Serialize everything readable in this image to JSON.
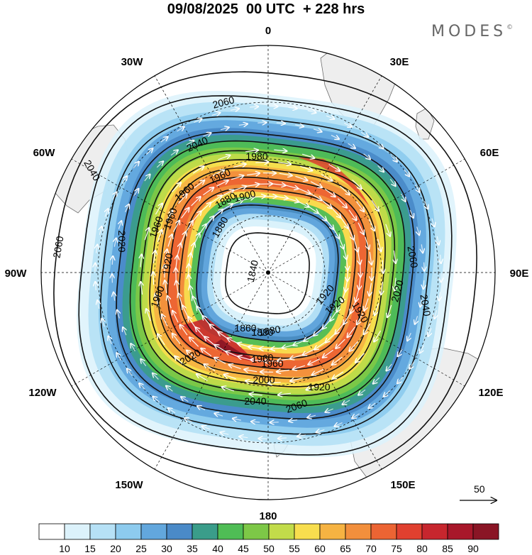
{
  "header": {
    "title": "09/08/2025  00 UTC  + 228 hrs",
    "brand": "MODES",
    "brand_mark": "©"
  },
  "longitude_labels": [
    "0",
    "30E",
    "60E",
    "90E",
    "120E",
    "150E",
    "180",
    "150W",
    "120W",
    "90W",
    "60W",
    "30W"
  ],
  "reference_vector": {
    "label": "50"
  },
  "contour_labels": [
    "2060",
    "2040",
    "2020",
    "2000",
    "1980",
    "1960",
    "1940",
    "1920",
    "1900",
    "1880",
    "1860",
    "1840"
  ],
  "colorbar": {
    "labels": [
      "10",
      "15",
      "20",
      "25",
      "30",
      "35",
      "40",
      "45",
      "50",
      "55",
      "60",
      "65",
      "70",
      "75",
      "80",
      "85",
      "90"
    ],
    "colors": [
      "#ffffff",
      "#dcf2fb",
      "#b6e1f6",
      "#8dcbee",
      "#62a7dd",
      "#4a8ac8",
      "#3a9d8a",
      "#4fbd55",
      "#7dc847",
      "#c2dc4a",
      "#f8de4e",
      "#f6b342",
      "#f28f3c",
      "#ec6433",
      "#e0402f",
      "#c7262e",
      "#a8172a",
      "#8a1525"
    ]
  },
  "colors": {
    "land": "#eeeeee",
    "coast": "#6d6d6d",
    "contour": "#111111",
    "wind_arrow": "#ffffff"
  }
}
